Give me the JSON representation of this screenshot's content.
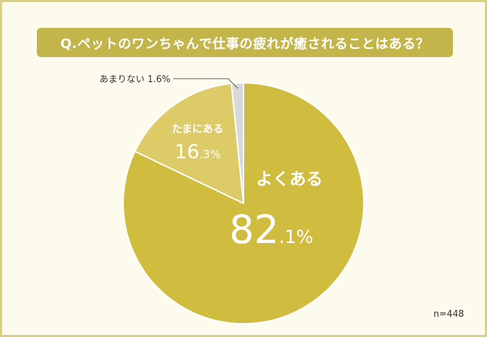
{
  "title": "Q.ペットのワンちゃんで仕事の疲れが癒されることはある？",
  "sample": "n=448",
  "colors": {
    "background": "#FDFBEE",
    "border": "#D9CD8A",
    "title_bg": "#C4B54A"
  },
  "chart_data": {
    "type": "pie",
    "title": "Q.ペットのワンちゃんで仕事の疲れが癒されることはある？",
    "unit": "%",
    "start": "12 o'clock",
    "direction": "clockwise",
    "slices": [
      {
        "label": "よくある",
        "value": 82.1,
        "int_part": "82",
        "dec_part": ".1%",
        "color": "#D0BD3F"
      },
      {
        "label": "たまにある",
        "value": 16.3,
        "int_part": "16",
        "dec_part": ".3%",
        "color": "#DDCB68"
      },
      {
        "label": "あまりない",
        "value": 1.6,
        "display": "あまりない 1.6%",
        "color": "#D9D9D9"
      }
    ]
  }
}
